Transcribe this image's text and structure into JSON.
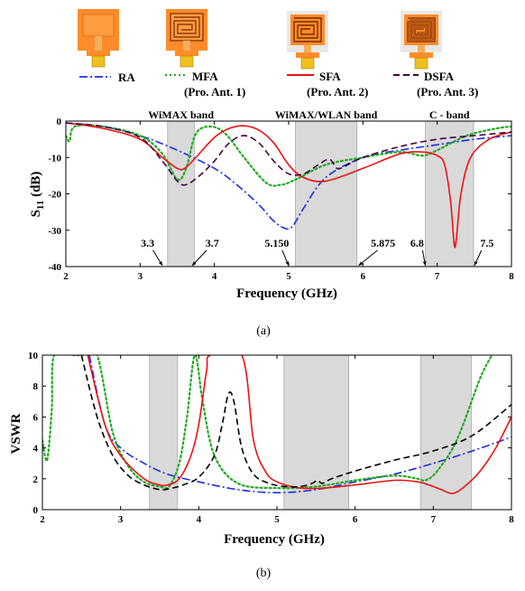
{
  "chart_data": [
    {
      "type": "line",
      "panel_label": "(a)",
      "xlabel": "Frequency (GHz)",
      "ylabel_main": "S",
      "ylabel_sub": "11",
      "ylabel_unit": " (dB)",
      "xlim": [
        2,
        8
      ],
      "ylim": [
        -40,
        0
      ],
      "xticks": [
        2,
        3,
        4,
        5,
        6,
        7,
        8
      ],
      "yticks": [
        0,
        -10,
        -20,
        -30,
        -40
      ],
      "bands": [
        {
          "label": "WiMAX band",
          "x0": 3.37,
          "x1": 3.73
        },
        {
          "label": "WiMAX/WLAN band",
          "x0": 5.09,
          "x1": 5.92
        },
        {
          "label": "C - band",
          "x0": 6.84,
          "x1": 7.49
        }
      ],
      "annotations": [
        {
          "text": "3.3",
          "x": 3.3,
          "tx": 3.1,
          "ty": -34.5
        },
        {
          "text": "3.7",
          "x": 3.7,
          "tx": 3.97,
          "ty": -34.5
        },
        {
          "text": "5.150",
          "x": 5.0,
          "tx": 4.84,
          "ty": -34.5
        },
        {
          "text": "5.875",
          "x": 5.94,
          "tx": 6.27,
          "ty": -34.5
        },
        {
          "text": "6.8",
          "x": 6.84,
          "tx": 6.73,
          "ty": -34.5
        },
        {
          "text": "7.5",
          "x": 7.5,
          "tx": 7.67,
          "ty": -34.5
        }
      ],
      "series": [
        {
          "key": "RA",
          "color": "#1a2ee0",
          "dash": "9 3 2 3",
          "x": [
            2.0,
            2.5,
            3.0,
            3.5,
            4.0,
            4.3,
            4.6,
            4.8,
            4.95,
            5.05,
            5.2,
            5.5,
            6.0,
            6.5,
            7.0,
            7.5,
            8.0
          ],
          "y": [
            -0.5,
            -1.5,
            -4.0,
            -8.0,
            -13.0,
            -17.5,
            -23.0,
            -27.5,
            -29.5,
            -29.0,
            -24.0,
            -15.5,
            -10.0,
            -8.0,
            -6.5,
            -5.0,
            -4.0
          ]
        },
        {
          "key": "MFA",
          "color": "#22aa22",
          "dash": "2 3",
          "x": [
            2.0,
            2.05,
            2.12,
            2.5,
            3.0,
            3.3,
            3.5,
            3.62,
            3.75,
            3.95,
            4.15,
            4.4,
            4.7,
            4.9,
            5.1,
            5.5,
            6.0,
            6.5,
            6.8,
            7.0,
            7.4,
            7.8,
            8.0
          ],
          "y": [
            -4.0,
            -5.5,
            -1.5,
            -1.5,
            -4.0,
            -9.0,
            -16.0,
            -13.0,
            -3.5,
            -1.5,
            -3.5,
            -10.0,
            -17.0,
            -17.5,
            -16.0,
            -12.0,
            -10.0,
            -8.5,
            -9.5,
            -8.0,
            -4.0,
            -2.0,
            -1.5
          ]
        },
        {
          "key": "SFA",
          "color": "#ee1111",
          "dash": "",
          "x": [
            2.0,
            2.5,
            3.0,
            3.3,
            3.5,
            3.6,
            3.75,
            4.0,
            4.2,
            4.4,
            4.6,
            4.8,
            5.0,
            5.2,
            5.5,
            6.0,
            6.5,
            6.8,
            7.0,
            7.1,
            7.18,
            7.23,
            7.26,
            7.32,
            7.45,
            7.7,
            8.0
          ],
          "y": [
            -0.5,
            -2.0,
            -5.0,
            -10.0,
            -13.0,
            -13.0,
            -10.0,
            -4.5,
            -2.0,
            -1.3,
            -2.5,
            -6.0,
            -12.0,
            -15.5,
            -16.5,
            -13.0,
            -9.0,
            -8.5,
            -9.5,
            -12.0,
            -22.0,
            -34.0,
            -32.0,
            -20.0,
            -10.0,
            -5.0,
            -3.0
          ]
        },
        {
          "key": "DSFA",
          "color": "#440044",
          "dash": "7 4",
          "x": [
            2.0,
            2.5,
            3.0,
            3.3,
            3.5,
            3.62,
            3.8,
            4.0,
            4.2,
            4.4,
            4.6,
            4.8,
            5.0,
            5.2,
            5.4,
            5.55,
            5.65,
            5.75,
            6.0,
            6.5,
            7.0,
            7.5,
            8.0
          ],
          "y": [
            -0.5,
            -1.5,
            -4.5,
            -11.0,
            -16.5,
            -17.5,
            -15.0,
            -11.0,
            -6.0,
            -4.0,
            -6.0,
            -11.0,
            -14.5,
            -14.5,
            -12.0,
            -10.5,
            -13.0,
            -12.5,
            -10.0,
            -7.0,
            -5.0,
            -4.0,
            -3.0
          ]
        }
      ]
    },
    {
      "type": "line",
      "panel_label": "(b)",
      "xlabel": "Frequency (GHz)",
      "ylabel": "VSWR",
      "xlim": [
        2,
        8
      ],
      "ylim": [
        0,
        10
      ],
      "xticks": [
        2,
        3,
        4,
        5,
        6,
        7,
        8
      ],
      "yticks": [
        0,
        2,
        4,
        6,
        8,
        10
      ],
      "bands": [
        {
          "x0": 3.37,
          "x1": 3.73
        },
        {
          "x0": 5.09,
          "x1": 5.92
        },
        {
          "x0": 6.84,
          "x1": 7.49
        }
      ],
      "series": [
        {
          "key": "RA",
          "color": "#1a2ee0",
          "dash": "9 3 2 3",
          "x": [
            2.6,
            2.8,
            3.0,
            3.3,
            3.6,
            4.0,
            4.5,
            5.0,
            5.5,
            6.0,
            6.5,
            7.0,
            7.5,
            8.0
          ],
          "y": [
            10.0,
            5.5,
            4.0,
            3.0,
            2.3,
            1.8,
            1.3,
            1.1,
            1.3,
            1.8,
            2.3,
            3.0,
            3.8,
            4.7
          ]
        },
        {
          "key": "MFA",
          "color": "#22aa22",
          "dash": "2 3",
          "x": [
            2.0,
            2.06,
            2.12,
            2.15,
            2.4,
            2.5,
            2.7,
            2.9,
            3.1,
            3.3,
            3.5,
            3.62,
            3.75,
            3.85,
            3.95,
            4.05,
            4.2,
            4.5,
            5.0,
            5.5,
            6.0,
            6.5,
            6.8,
            6.9,
            7.05,
            7.3,
            7.6,
            7.75
          ],
          "y": [
            4.5,
            3.2,
            6.5,
            10.0,
            10.0,
            10.0,
            10.0,
            5.0,
            2.8,
            1.8,
            1.5,
            1.5,
            3.0,
            6.0,
            10.0,
            7.0,
            3.5,
            1.7,
            1.4,
            1.5,
            1.9,
            2.2,
            2.0,
            1.9,
            2.5,
            4.5,
            8.5,
            10.0
          ]
        },
        {
          "key": "SFA",
          "color": "#ee1111",
          "dash": "",
          "x": [
            2.58,
            2.8,
            3.0,
            3.3,
            3.5,
            3.6,
            3.75,
            3.9,
            4.0,
            4.1,
            4.15,
            4.55,
            4.7,
            4.85,
            5.0,
            5.3,
            5.6,
            6.0,
            6.5,
            6.8,
            7.0,
            7.1,
            7.25,
            7.4,
            7.6,
            7.8,
            8.0
          ],
          "y": [
            10.0,
            5.5,
            3.5,
            2.0,
            1.6,
            1.6,
            2.0,
            3.5,
            5.5,
            9.0,
            10.0,
            10.0,
            4.5,
            2.5,
            1.8,
            1.4,
            1.4,
            1.6,
            1.9,
            1.8,
            1.5,
            1.3,
            1.05,
            1.5,
            2.5,
            4.0,
            6.0
          ]
        },
        {
          "key": "DSFA",
          "color": "#000000",
          "dash": "7 4",
          "x": [
            2.5,
            2.7,
            2.9,
            3.1,
            3.3,
            3.5,
            3.62,
            3.8,
            4.0,
            4.2,
            4.3,
            4.38,
            4.45,
            4.55,
            4.7,
            4.9,
            5.1,
            5.3,
            5.45,
            5.52,
            5.58,
            5.7,
            6.0,
            6.5,
            7.0,
            7.5,
            8.0
          ],
          "y": [
            10.0,
            6.0,
            3.5,
            2.2,
            1.6,
            1.3,
            1.35,
            1.6,
            2.1,
            3.5,
            5.5,
            7.5,
            7.0,
            4.0,
            2.3,
            1.7,
            1.5,
            1.5,
            1.7,
            1.9,
            1.7,
            2.0,
            2.5,
            3.2,
            3.8,
            4.8,
            6.8
          ]
        }
      ]
    }
  ],
  "legend": [
    {
      "key": "RA",
      "label": "RA",
      "sub": ""
    },
    {
      "key": "MFA",
      "label": "MFA",
      "sub": "(Pro. Ant. 1)"
    },
    {
      "key": "SFA",
      "label": "SFA",
      "sub": "(Pro. Ant. 2)"
    },
    {
      "key": "DSFA",
      "label": "DSFA",
      "sub": "(Pro. Ant. 3)"
    }
  ],
  "antenna_images": [
    {
      "key": "RA",
      "pattern": "rectangle"
    },
    {
      "key": "MFA",
      "pattern": "meander"
    },
    {
      "key": "SFA",
      "pattern": "spiral"
    },
    {
      "key": "DSFA",
      "pattern": "double-spiral"
    }
  ],
  "colors": {
    "patch": "#ff8c2a",
    "pattern_line": "#7a2a00",
    "substrate": "#e0e0e0",
    "connector": "#f0c020",
    "band_fill": "#d9d9d9",
    "band_edge": "#9a9a9a"
  }
}
